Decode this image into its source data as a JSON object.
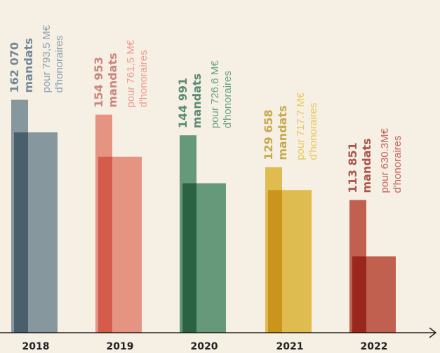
{
  "chart_data": {
    "type": "bar",
    "categories": [
      "2018",
      "2019",
      "2020",
      "2021",
      "2022"
    ],
    "colors": [
      "#8ba1b0",
      "#ee9e92",
      "#6aa388",
      "#e8c95a",
      "#c9665a"
    ],
    "series": [
      {
        "name": "mandats",
        "values": [
          162070,
          154953,
          144991,
          129658,
          113851
        ],
        "value_labels": [
          "162 070",
          "154 953",
          "144 991",
          "129 658",
          "113 851"
        ]
      },
      {
        "name": "d'honoraires",
        "axis": "y2",
        "values": [
          793.5,
          761.5,
          726.6,
          717.7,
          630.3
        ],
        "value_labels": [
          "pour 793,5 M€",
          "pour 761,5 M€",
          "pour 726.6 M€",
          "pour 717.7 M€",
          "pour 630.3M€"
        ]
      }
    ],
    "ylim": [
      50000,
      170000
    ],
    "y2lim": [
      530,
      858
    ]
  }
}
